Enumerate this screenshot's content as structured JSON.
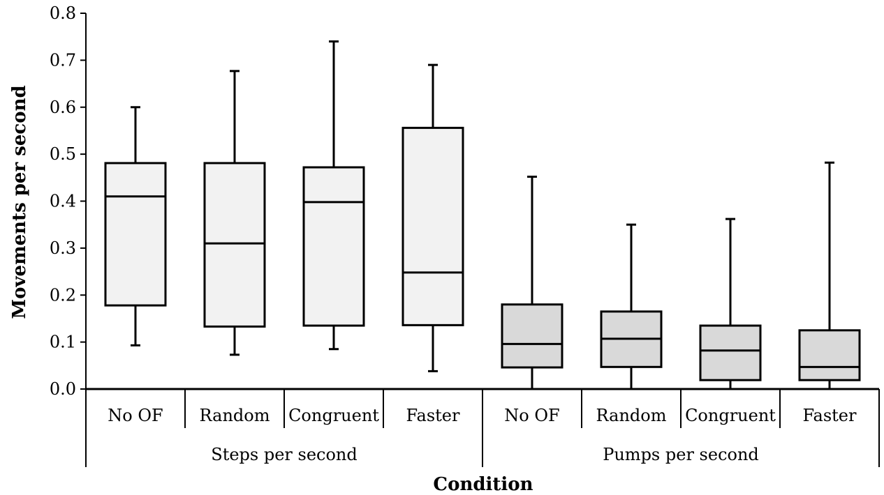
{
  "chart_data": {
    "type": "boxplot",
    "title": "",
    "xlabel": "Condition",
    "ylabel": "Movements per second",
    "ylim": [
      0,
      0.8
    ],
    "yticks": [
      "0.0",
      "0.1",
      "0.2",
      "0.3",
      "0.4",
      "0.5",
      "0.6",
      "0.7",
      "0.8"
    ],
    "groups": [
      {
        "label": "Steps per second",
        "fill": "#f2f2f2",
        "categories": [
          "No OF",
          "Random",
          "Congruent",
          "Faster"
        ]
      },
      {
        "label": "Pumps per second",
        "fill": "#d9d9d9",
        "categories": [
          "No OF",
          "Random",
          "Congruent",
          "Faster"
        ]
      }
    ],
    "boxes": [
      {
        "group": "Steps per second",
        "category": "No OF",
        "min": 0.093,
        "q1": 0.178,
        "median": 0.41,
        "q3": 0.481,
        "max": 0.6
      },
      {
        "group": "Steps per second",
        "category": "Random",
        "min": 0.073,
        "q1": 0.133,
        "median": 0.31,
        "q3": 0.481,
        "max": 0.677
      },
      {
        "group": "Steps per second",
        "category": "Congruent",
        "min": 0.085,
        "q1": 0.135,
        "median": 0.398,
        "q3": 0.472,
        "max": 0.74
      },
      {
        "group": "Steps per second",
        "category": "Faster",
        "min": 0.038,
        "q1": 0.136,
        "median": 0.248,
        "q3": 0.556,
        "max": 0.69
      },
      {
        "group": "Pumps per second",
        "category": "No OF",
        "min": 0.0,
        "q1": 0.046,
        "median": 0.096,
        "q3": 0.18,
        "max": 0.452
      },
      {
        "group": "Pumps per second",
        "category": "Random",
        "min": 0.0,
        "q1": 0.047,
        "median": 0.107,
        "q3": 0.165,
        "max": 0.35
      },
      {
        "group": "Pumps per second",
        "category": "Congruent",
        "min": 0.0,
        "q1": 0.019,
        "median": 0.082,
        "q3": 0.135,
        "max": 0.362
      },
      {
        "group": "Pumps per second",
        "category": "Faster",
        "min": 0.0,
        "q1": 0.019,
        "median": 0.047,
        "q3": 0.125,
        "max": 0.482
      }
    ]
  }
}
